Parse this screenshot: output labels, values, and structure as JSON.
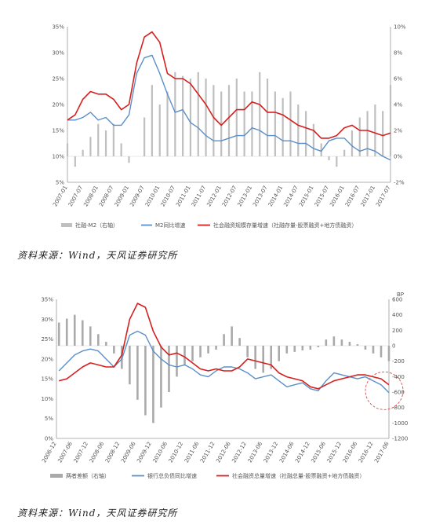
{
  "chart_data": [
    {
      "type": "bar+line",
      "x_ticks": [
        "2007-01",
        "2007-07",
        "2008-01",
        "2008-07",
        "2009-01",
        "2009-07",
        "2010-01",
        "2010-07",
        "2011-01",
        "2011-07",
        "2012-01",
        "2012-07",
        "2013-01",
        "2013-07",
        "2014-01",
        "2014-07",
        "2015-01",
        "2015-07",
        "2016-01",
        "2016-07",
        "2017-01",
        "2017-07"
      ],
      "y_left_ticks": [
        "35%",
        "30%",
        "25%",
        "20%",
        "15%",
        "10%",
        "5%"
      ],
      "y_left_range": [
        5,
        35
      ],
      "y_right_ticks": [
        "10%",
        "8%",
        "6%",
        "4%",
        "2%",
        "0%",
        "-2%"
      ],
      "y_right_range": [
        -2,
        10
      ],
      "legend_position": "bottom",
      "series": [
        {
          "name": "社融-M2（右轴）",
          "kind": "bar",
          "axis": "right",
          "color": "#bfbfbf",
          "x": [
            2007.0,
            2007.25,
            2007.5,
            2007.75,
            2008.0,
            2008.25,
            2008.5,
            2008.75,
            2009.0,
            2009.25,
            2009.5,
            2009.75,
            2010.0,
            2010.25,
            2010.5,
            2010.75,
            2011.0,
            2011.25,
            2011.5,
            2011.75,
            2012.0,
            2012.25,
            2012.5,
            2012.75,
            2013.0,
            2013.25,
            2013.5,
            2013.75,
            2014.0,
            2014.25,
            2014.5,
            2014.75,
            2015.0,
            2015.25,
            2015.5,
            2015.75,
            2016.0,
            2016.25,
            2016.5,
            2016.75,
            2017.0,
            2017.25,
            2017.5
          ],
          "values": [
            1.0,
            -0.8,
            0.5,
            1.5,
            2.5,
            2.0,
            2.5,
            1.0,
            -0.5,
            0.0,
            3.0,
            5.5,
            4.0,
            5.0,
            6.5,
            6.2,
            6.0,
            6.5,
            6.0,
            5.5,
            5.0,
            5.5,
            6.0,
            5.0,
            5.0,
            6.5,
            6.0,
            5.0,
            4.5,
            5.0,
            4.0,
            3.5,
            2.5,
            1.0,
            -0.3,
            -0.8,
            0.5,
            2.0,
            3.0,
            3.5,
            4.0,
            3.5,
            5.5
          ]
        },
        {
          "name": "M2同比增速",
          "kind": "line",
          "axis": "left",
          "color": "#5b8fc9",
          "x": [
            2007.0,
            2007.25,
            2007.5,
            2007.75,
            2008.0,
            2008.25,
            2008.5,
            2008.75,
            2009.0,
            2009.25,
            2009.5,
            2009.75,
            2010.0,
            2010.25,
            2010.5,
            2010.75,
            2011.0,
            2011.25,
            2011.5,
            2011.75,
            2012.0,
            2012.25,
            2012.5,
            2012.75,
            2013.0,
            2013.25,
            2013.5,
            2013.75,
            2014.0,
            2014.25,
            2014.5,
            2014.75,
            2015.0,
            2015.25,
            2015.5,
            2015.75,
            2016.0,
            2016.25,
            2016.5,
            2016.75,
            2017.0,
            2017.25,
            2017.5
          ],
          "values": [
            17.0,
            17.0,
            17.5,
            18.5,
            17.0,
            17.5,
            16.0,
            16.0,
            18.0,
            26.0,
            29.0,
            29.5,
            26.0,
            22.0,
            18.5,
            19.0,
            16.5,
            15.5,
            14.0,
            13.0,
            13.0,
            13.5,
            14.0,
            14.0,
            15.5,
            15.0,
            14.0,
            14.0,
            13.0,
            13.0,
            12.5,
            12.5,
            11.5,
            11.0,
            13.0,
            13.5,
            13.5,
            12.0,
            11.0,
            11.5,
            11.0,
            10.0,
            9.3
          ]
        },
        {
          "name": "社会融资规模存量增速（社融存量-股票融资+地方债融资）",
          "kind": "line",
          "axis": "left",
          "color": "#d61f1f",
          "x": [
            2007.0,
            2007.25,
            2007.5,
            2007.75,
            2008.0,
            2008.25,
            2008.5,
            2008.75,
            2009.0,
            2009.25,
            2009.5,
            2009.75,
            2010.0,
            2010.25,
            2010.5,
            2010.75,
            2011.0,
            2011.25,
            2011.5,
            2011.75,
            2012.0,
            2012.25,
            2012.5,
            2012.75,
            2013.0,
            2013.25,
            2013.5,
            2013.75,
            2014.0,
            2014.25,
            2014.5,
            2014.75,
            2015.0,
            2015.25,
            2015.5,
            2015.75,
            2016.0,
            2016.25,
            2016.5,
            2016.75,
            2017.0,
            2017.25,
            2017.5
          ],
          "values": [
            17.0,
            18.0,
            21.0,
            22.5,
            22.0,
            22.0,
            21.0,
            19.0,
            20.0,
            28.0,
            33.0,
            34.0,
            32.0,
            26.0,
            25.0,
            25.0,
            24.0,
            22.0,
            20.0,
            17.5,
            16.0,
            17.5,
            19.0,
            19.0,
            20.5,
            20.0,
            18.5,
            18.5,
            18.0,
            17.0,
            16.0,
            15.5,
            15.0,
            13.5,
            13.5,
            14.0,
            15.5,
            16.0,
            15.0,
            15.0,
            14.5,
            14.0,
            14.5
          ]
        }
      ]
    },
    {
      "type": "bar+line",
      "x_ticks": [
        "2006-12",
        "2007-06",
        "2007-12",
        "2008-06",
        "2008-12",
        "2009-06",
        "2009-12",
        "2010-06",
        "2010-12",
        "2011-06",
        "2011-12",
        "2012-06",
        "2012-12",
        "2013-06",
        "2013-12",
        "2014-06",
        "2014-12",
        "2015-06",
        "2015-12",
        "2016-06",
        "2016-12",
        "2017-06"
      ],
      "y_left_ticks": [
        "35%",
        "30%",
        "25%",
        "20%",
        "15%",
        "10%",
        "5%",
        "0%"
      ],
      "y_left_range": [
        0,
        35
      ],
      "y_right_title": "BP",
      "y_right_ticks": [
        "600",
        "400",
        "200",
        "0",
        "-200",
        "-400",
        "-600",
        "-800",
        "-1000",
        "-1200"
      ],
      "y_right_range": [
        -1200,
        600
      ],
      "legend_position": "bottom",
      "series": [
        {
          "name": "两者差额（右轴）",
          "kind": "bar",
          "axis": "right",
          "color": "#aaaaaa",
          "x": [
            2007.0,
            2007.25,
            2007.5,
            2007.75,
            2008.0,
            2008.25,
            2008.5,
            2008.75,
            2009.0,
            2009.25,
            2009.5,
            2009.75,
            2010.0,
            2010.25,
            2010.5,
            2010.75,
            2011.0,
            2011.25,
            2011.5,
            2011.75,
            2012.0,
            2012.25,
            2012.5,
            2012.75,
            2013.0,
            2013.25,
            2013.5,
            2013.75,
            2014.0,
            2014.25,
            2014.5,
            2014.75,
            2015.0,
            2015.25,
            2015.5,
            2015.75,
            2016.0,
            2016.25,
            2016.5,
            2016.75,
            2017.0,
            2017.25,
            2017.5
          ],
          "values": [
            300,
            350,
            400,
            330,
            250,
            150,
            50,
            -100,
            -300,
            -500,
            -700,
            -900,
            -1000,
            -800,
            -600,
            -400,
            -250,
            -200,
            -150,
            -100,
            -50,
            150,
            250,
            100,
            -150,
            -300,
            -350,
            -300,
            -200,
            -100,
            -80,
            -60,
            -50,
            -20,
            80,
            120,
            80,
            50,
            20,
            -50,
            -100,
            -150,
            -200
          ]
        },
        {
          "name": "银行总负债同比增速",
          "kind": "line",
          "axis": "left",
          "color": "#5b8fc9",
          "x": [
            2007.0,
            2007.25,
            2007.5,
            2007.75,
            2008.0,
            2008.25,
            2008.5,
            2008.75,
            2009.0,
            2009.25,
            2009.5,
            2009.75,
            2010.0,
            2010.25,
            2010.5,
            2010.75,
            2011.0,
            2011.25,
            2011.5,
            2011.75,
            2012.0,
            2012.25,
            2012.5,
            2012.75,
            2013.0,
            2013.25,
            2013.5,
            2013.75,
            2014.0,
            2014.25,
            2014.5,
            2014.75,
            2015.0,
            2015.25,
            2015.5,
            2015.75,
            2016.0,
            2016.25,
            2016.5,
            2016.75,
            2017.0,
            2017.25,
            2017.5
          ],
          "values": [
            17.0,
            19.0,
            21.0,
            22.0,
            22.5,
            22.0,
            20.0,
            18.0,
            20.0,
            26.0,
            27.0,
            26.0,
            22.0,
            20.0,
            18.5,
            18.0,
            18.5,
            17.5,
            16.0,
            15.5,
            17.0,
            18.0,
            18.0,
            17.5,
            16.5,
            15.0,
            15.5,
            16.0,
            14.5,
            13.0,
            13.5,
            14.0,
            12.5,
            12.0,
            14.5,
            16.5,
            16.0,
            15.5,
            15.0,
            15.5,
            14.5,
            13.5,
            11.5
          ]
        },
        {
          "name": "社会融资总量增速（社融总量-股票融资+地方债融资）",
          "kind": "line",
          "axis": "left",
          "color": "#d61f1f",
          "x": [
            2007.0,
            2007.25,
            2007.5,
            2007.75,
            2008.0,
            2008.25,
            2008.5,
            2008.75,
            2009.0,
            2009.25,
            2009.5,
            2009.75,
            2010.0,
            2010.25,
            2010.5,
            2010.75,
            2011.0,
            2011.25,
            2011.5,
            2011.75,
            2012.0,
            2012.25,
            2012.5,
            2012.75,
            2013.0,
            2013.25,
            2013.5,
            2013.75,
            2014.0,
            2014.25,
            2014.5,
            2014.75,
            2015.0,
            2015.25,
            2015.5,
            2015.75,
            2016.0,
            2016.25,
            2016.5,
            2016.75,
            2017.0,
            2017.25,
            2017.5
          ],
          "values": [
            14.5,
            15.0,
            16.5,
            18.0,
            19.0,
            18.5,
            18.0,
            18.0,
            21.0,
            30.0,
            34.0,
            33.0,
            27.0,
            23.0,
            21.0,
            21.5,
            20.5,
            19.0,
            17.5,
            17.0,
            17.5,
            17.0,
            17.0,
            18.0,
            20.0,
            19.5,
            19.0,
            18.5,
            16.5,
            15.5,
            15.0,
            14.5,
            13.0,
            12.5,
            13.5,
            14.5,
            15.0,
            15.5,
            16.0,
            16.0,
            15.5,
            15.0,
            13.5
          ]
        }
      ]
    }
  ],
  "sources": [
    "资料来源：Wind，天风证券研究所",
    "资料来源：Wind，天风证券研究所"
  ]
}
